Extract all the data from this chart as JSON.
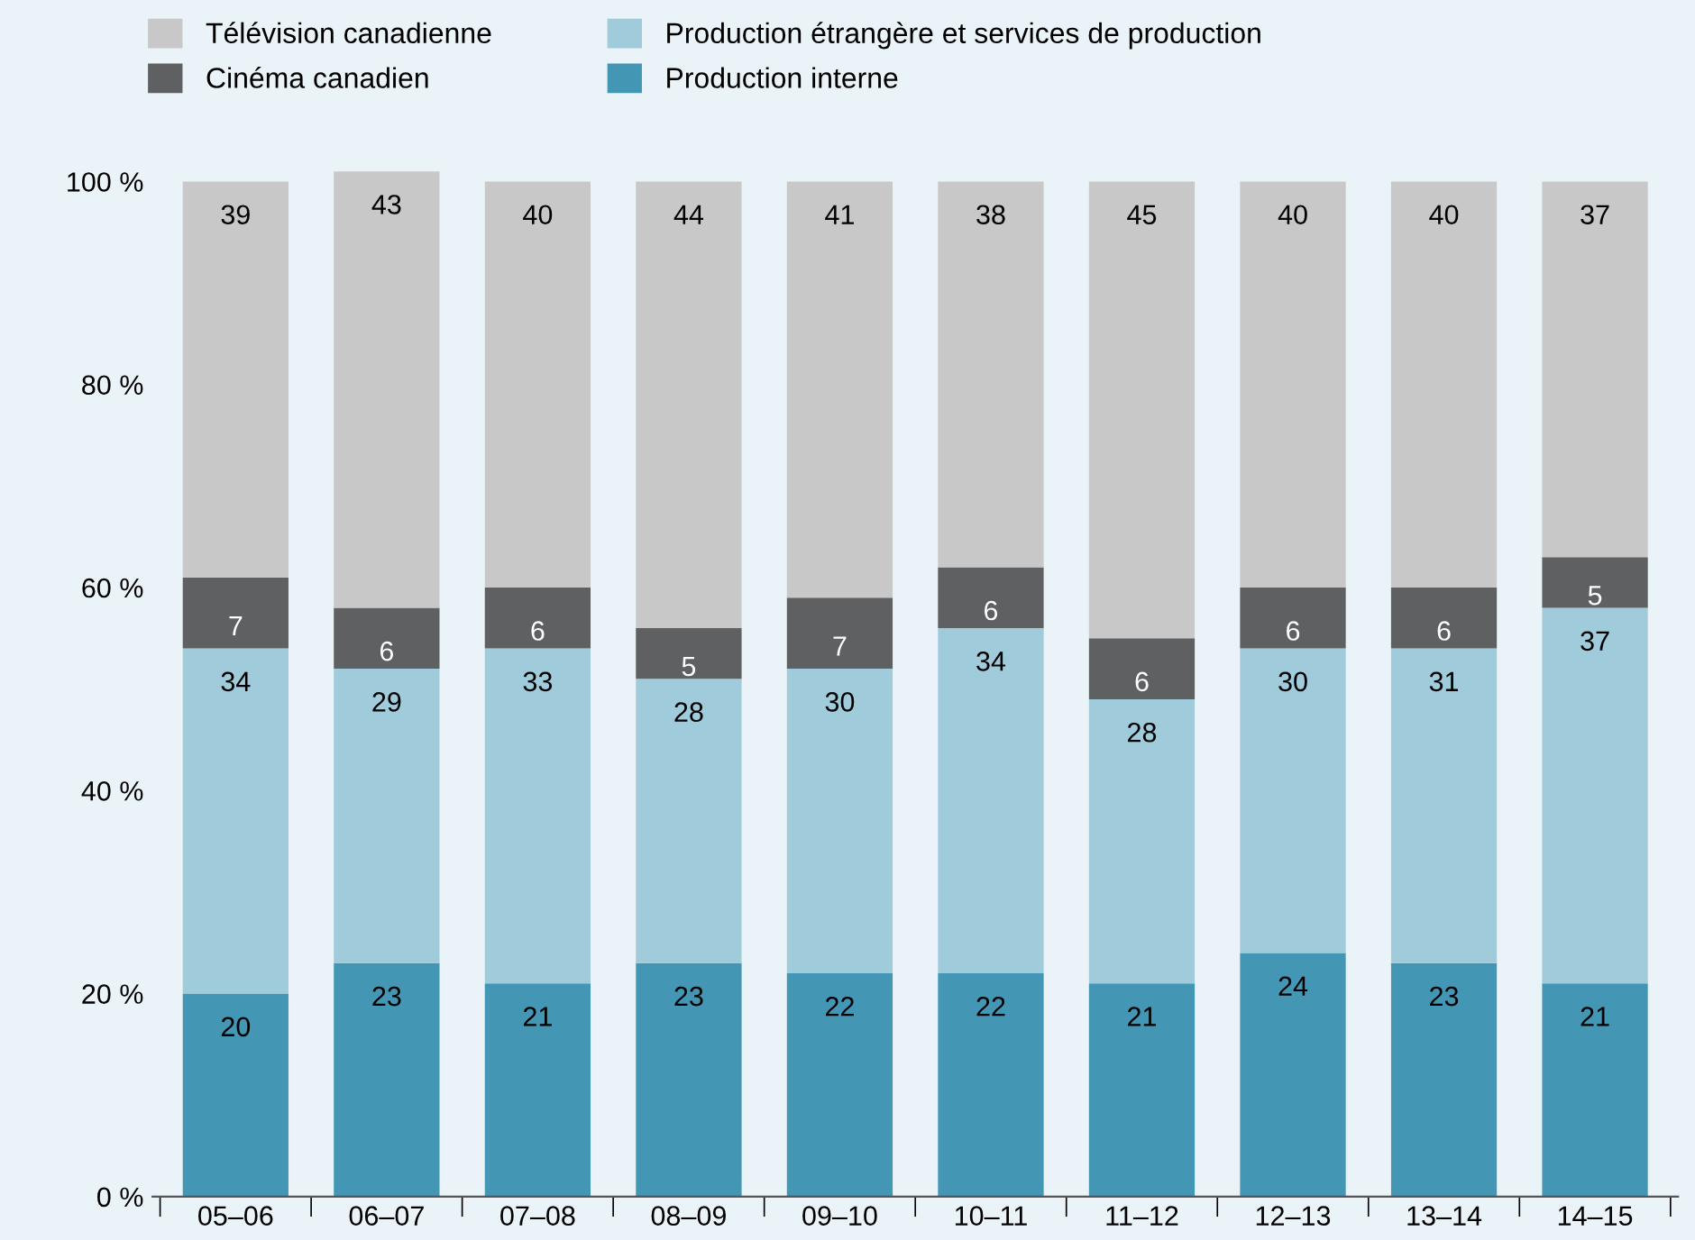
{
  "chart_data": {
    "type": "bar",
    "stacked": true,
    "categories": [
      "05–06",
      "06–07",
      "07–08",
      "08–09",
      "09–10",
      "10–11",
      "11–12",
      "12–13",
      "13–14",
      "14–15"
    ],
    "series": [
      {
        "name": "Production interne",
        "color": "#4496b5",
        "values": [
          20,
          23,
          21,
          23,
          22,
          22,
          21,
          24,
          23,
          21
        ]
      },
      {
        "name": "Production étrangère et services de production",
        "color": "#9fcbdb",
        "values": [
          34,
          29,
          33,
          28,
          30,
          34,
          28,
          30,
          31,
          37
        ]
      },
      {
        "name": "Cinéma canadien",
        "color": "#5f6062",
        "values": [
          7,
          6,
          6,
          5,
          7,
          6,
          6,
          6,
          6,
          5
        ]
      },
      {
        "name": "Télévision canadienne",
        "color": "#c8c8c8",
        "values": [
          39,
          43,
          40,
          44,
          41,
          38,
          45,
          40,
          40,
          37
        ]
      }
    ],
    "ylim": [
      0,
      102
    ],
    "yticks": [
      {
        "value": 0,
        "label": "0 %"
      },
      {
        "value": 20,
        "label": "20 %"
      },
      {
        "value": 40,
        "label": "40 %"
      },
      {
        "value": 60,
        "label": "60 %"
      },
      {
        "value": 80,
        "label": "80 %"
      },
      {
        "value": 100,
        "label": "100 %"
      }
    ],
    "data_labels": true,
    "legend": "top",
    "grid": false
  }
}
